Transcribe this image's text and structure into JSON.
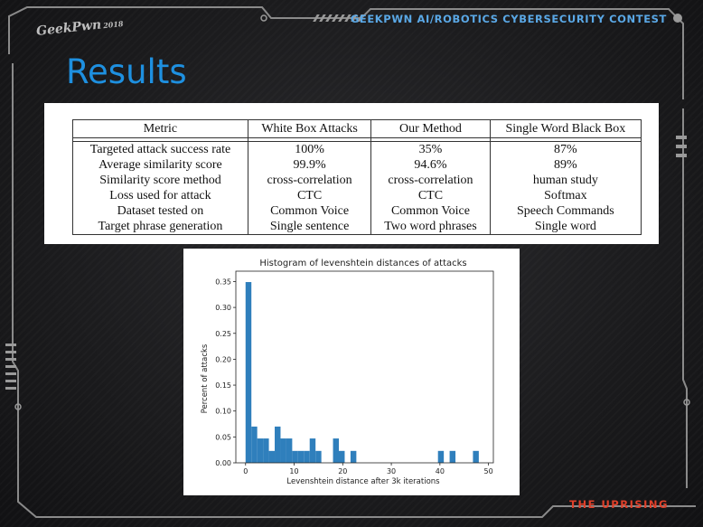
{
  "header": {
    "contest_title": "GEEKPWN AI/ROBOTICS CYBERSECURITY CONTEST",
    "logo_text": "GeekPwn",
    "logo_sub": "2018"
  },
  "slide": {
    "title": "Results",
    "tagline": "THE UPRISING"
  },
  "table": {
    "columns": [
      "Metric",
      "White Box Attacks",
      "Our Method",
      "Single Word Black Box"
    ],
    "rows": [
      [
        "Targeted attack success rate",
        "100%",
        "35%",
        "87%"
      ],
      [
        "Average similarity score",
        "99.9%",
        "94.6%",
        "89%"
      ],
      [
        "Similarity score method",
        "cross-correlation",
        "cross-correlation",
        "human study"
      ],
      [
        "Loss used for attack",
        "CTC",
        "CTC",
        "Softmax"
      ],
      [
        "Dataset tested on",
        "Common Voice",
        "Common Voice",
        "Speech Commands"
      ],
      [
        "Target phrase generation",
        "Single sentence",
        "Two word phrases",
        "Single word"
      ]
    ]
  },
  "chart_data": {
    "type": "bar",
    "title": "Histogram of levenshtein distances of attacks",
    "xlabel": "Levenshtein distance after 3k iterations",
    "ylabel": "Percent of attacks",
    "xlim": [
      -2,
      51
    ],
    "ylim": [
      0,
      0.37
    ],
    "x_ticks": [
      0,
      10,
      20,
      30,
      40,
      50
    ],
    "y_ticks": [
      0.0,
      0.05,
      0.1,
      0.15,
      0.2,
      0.25,
      0.3,
      0.35
    ],
    "bin_width": 1.2,
    "bins": [
      {
        "x": 0.0,
        "value": 0.349
      },
      {
        "x": 1.2,
        "value": 0.07
      },
      {
        "x": 2.4,
        "value": 0.047
      },
      {
        "x": 3.6,
        "value": 0.047
      },
      {
        "x": 4.8,
        "value": 0.023
      },
      {
        "x": 6.0,
        "value": 0.07
      },
      {
        "x": 7.2,
        "value": 0.047
      },
      {
        "x": 8.4,
        "value": 0.047
      },
      {
        "x": 9.6,
        "value": 0.023
      },
      {
        "x": 10.8,
        "value": 0.023
      },
      {
        "x": 12.0,
        "value": 0.023
      },
      {
        "x": 13.2,
        "value": 0.047
      },
      {
        "x": 14.4,
        "value": 0.023
      },
      {
        "x": 18.0,
        "value": 0.047
      },
      {
        "x": 19.2,
        "value": 0.023
      },
      {
        "x": 21.6,
        "value": 0.023
      },
      {
        "x": 39.6,
        "value": 0.023
      },
      {
        "x": 42.0,
        "value": 0.023
      },
      {
        "x": 46.8,
        "value": 0.023
      }
    ],
    "bar_color": "#2f7fbc",
    "grid": false
  },
  "colors": {
    "accent_blue": "#1e90e0",
    "header_blue": "#5aa8e6",
    "tagline_red": "#e0402a"
  }
}
